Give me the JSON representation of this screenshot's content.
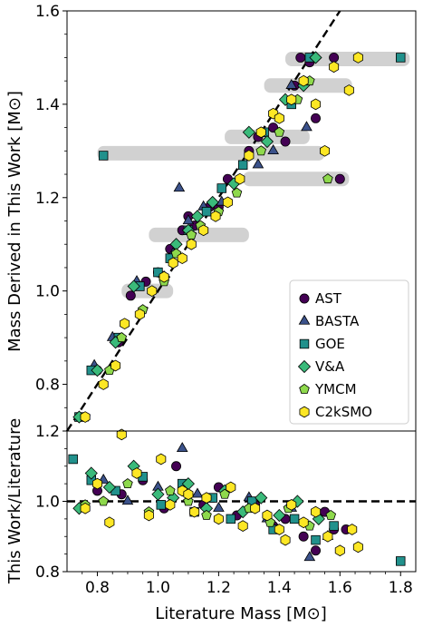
{
  "chart_data": [
    {
      "type": "scatter",
      "panel": "top",
      "xlabel": "",
      "ylabel": "Mass Derived in This Work [M⊙]",
      "ylim": [
        0.7,
        1.6
      ],
      "xlim": [
        0.7,
        1.85
      ],
      "y_ticks": [
        "0.8",
        "1.0",
        "1.2",
        "1.4",
        "1.6"
      ],
      "grid": false,
      "legend_position": "lower-right",
      "reference_line": {
        "style": "dashed",
        "color": "#000000",
        "relation": "y = x"
      },
      "uncertainty_bands": [
        {
          "y": 1.497,
          "x_low": 1.42,
          "x_high": 1.83
        },
        {
          "y": 1.295,
          "x_low": 0.8,
          "x_high": 1.55
        },
        {
          "y": 1.24,
          "x_low": 1.28,
          "x_high": 1.63
        },
        {
          "y": 1.33,
          "x_low": 1.22,
          "x_high": 1.5
        },
        {
          "y": 1.44,
          "x_low": 1.35,
          "x_high": 1.64
        },
        {
          "y": 1.12,
          "x_low": 0.97,
          "x_high": 1.3
        },
        {
          "y": 1.0,
          "x_low": 0.88,
          "x_high": 1.05
        }
      ],
      "series": [
        {
          "name": "AST",
          "marker": "circle",
          "color": "#440154",
          "x": [
            0.8,
            0.87,
            0.91,
            0.96,
            1.0,
            1.04,
            1.08,
            1.1,
            1.12,
            1.17,
            1.2,
            1.23,
            1.3,
            1.33,
            1.38,
            1.42,
            1.45,
            1.47,
            1.5,
            1.52,
            1.58,
            1.6
          ],
          "y": [
            0.83,
            0.89,
            0.99,
            1.02,
            1.04,
            1.09,
            1.13,
            1.16,
            1.14,
            1.18,
            1.18,
            1.24,
            1.3,
            1.33,
            1.35,
            1.32,
            1.44,
            1.5,
            1.49,
            1.37,
            1.5,
            1.24
          ]
        },
        {
          "name": "BASTA",
          "marker": "triangle",
          "color": "#3b528b",
          "x": [
            0.79,
            0.85,
            0.93,
            1.05,
            1.07,
            1.1,
            1.15,
            1.21,
            1.33,
            1.38,
            1.44,
            1.49
          ],
          "y": [
            0.84,
            0.9,
            1.02,
            1.08,
            1.22,
            1.15,
            1.18,
            1.19,
            1.27,
            1.3,
            1.44,
            1.35
          ]
        },
        {
          "name": "GOE",
          "marker": "square",
          "color": "#21918c",
          "x": [
            0.74,
            0.78,
            0.87,
            0.94,
            1.0,
            1.04,
            1.1,
            1.16,
            1.21,
            1.28,
            1.35,
            1.44,
            1.5,
            1.8,
            0.82
          ],
          "y": [
            0.73,
            0.83,
            0.9,
            1.01,
            1.04,
            1.07,
            1.13,
            1.17,
            1.22,
            1.27,
            1.34,
            1.4,
            1.5,
            1.5,
            1.29
          ]
        },
        {
          "name": "V&A",
          "marker": "diamond",
          "color": "#3aba7a",
          "x": [
            0.74,
            0.8,
            0.86,
            0.92,
            1.02,
            1.06,
            1.1,
            1.13,
            1.18,
            1.25,
            1.3,
            1.36,
            1.42,
            1.48,
            1.52
          ],
          "y": [
            0.73,
            0.83,
            0.89,
            1.01,
            1.03,
            1.1,
            1.13,
            1.16,
            1.19,
            1.23,
            1.34,
            1.32,
            1.41,
            1.44,
            1.5
          ]
        },
        {
          "name": "YMCM",
          "marker": "pentagon",
          "color": "#8ed94c",
          "x": [
            0.76,
            0.84,
            0.88,
            0.95,
            1.02,
            1.06,
            1.11,
            1.14,
            1.2,
            1.26,
            1.34,
            1.4,
            1.46,
            1.5,
            1.56
          ],
          "y": [
            0.73,
            0.83,
            0.9,
            0.96,
            1.02,
            1.08,
            1.12,
            1.14,
            1.17,
            1.21,
            1.3,
            1.34,
            1.41,
            1.45,
            1.24
          ]
        },
        {
          "name": "C2kSMO",
          "marker": "hexagon",
          "color": "#fde725",
          "x": [
            0.76,
            0.82,
            0.86,
            0.89,
            0.94,
            0.98,
            1.02,
            1.05,
            1.08,
            1.11,
            1.15,
            1.19,
            1.23,
            1.27,
            1.3,
            1.34,
            1.38,
            1.4,
            1.44,
            1.48,
            1.52,
            1.55,
            1.58,
            1.63,
            1.66
          ],
          "y": [
            0.73,
            0.8,
            0.84,
            0.93,
            0.95,
            1.0,
            1.03,
            1.06,
            1.07,
            1.1,
            1.13,
            1.16,
            1.19,
            1.24,
            1.29,
            1.34,
            1.38,
            1.37,
            1.41,
            1.45,
            1.4,
            1.3,
            1.48,
            1.43,
            1.5
          ]
        }
      ]
    },
    {
      "type": "scatter",
      "panel": "bottom",
      "xlabel": "Literature Mass [M⊙]",
      "ylabel": "This Work/Literature",
      "xlim": [
        0.7,
        1.85
      ],
      "ylim": [
        0.8,
        1.2
      ],
      "x_ticks": [
        "0.8",
        "1.0",
        "1.2",
        "1.4",
        "1.6",
        "1.8"
      ],
      "y_ticks": [
        "0.8",
        "1.0",
        "1.2"
      ],
      "grid": false,
      "reference_line": {
        "style": "dashed",
        "color": "#000000",
        "relation": "y = 1"
      },
      "series": [
        {
          "name": "AST",
          "marker": "circle",
          "color": "#440154",
          "x": [
            0.8,
            0.88,
            0.95,
            1.02,
            1.06,
            1.1,
            1.15,
            1.2,
            1.26,
            1.32,
            1.38,
            1.42,
            1.48,
            1.52,
            1.55,
            1.58,
            1.62
          ],
          "y": [
            1.03,
            1.02,
            1.06,
            0.98,
            1.1,
            1.02,
            0.99,
            1.04,
            0.96,
            0.99,
            0.93,
            0.95,
            0.9,
            0.86,
            0.97,
            0.92,
            0.92
          ]
        },
        {
          "name": "BASTA",
          "marker": "triangle",
          "color": "#3b528b",
          "x": [
            0.82,
            0.9,
            1.0,
            1.08,
            1.13,
            1.2,
            1.3,
            1.36,
            1.44,
            1.5,
            1.56
          ],
          "y": [
            1.06,
            1.0,
            1.04,
            1.15,
            1.02,
            0.98,
            1.01,
            0.95,
            0.98,
            0.84,
            0.9
          ]
        },
        {
          "name": "GOE",
          "marker": "square",
          "color": "#21918c",
          "x": [
            0.72,
            0.78,
            0.86,
            0.95,
            1.01,
            1.08,
            1.12,
            1.18,
            1.24,
            1.31,
            1.38,
            1.45,
            1.52,
            1.58,
            1.8
          ],
          "y": [
            1.12,
            1.06,
            1.03,
            1.07,
            0.99,
            1.05,
            0.97,
            1.01,
            0.95,
            1.0,
            0.92,
            0.95,
            0.89,
            0.93,
            0.83
          ]
        },
        {
          "name": "V&A",
          "marker": "diamond",
          "color": "#3aba7a",
          "x": [
            0.74,
            0.78,
            0.84,
            0.92,
            1.0,
            1.05,
            1.1,
            1.16,
            1.22,
            1.28,
            1.34,
            1.4,
            1.46,
            1.53
          ],
          "y": [
            0.98,
            1.08,
            1.04,
            1.1,
            1.02,
            1.01,
            1.05,
            0.98,
            1.03,
            0.97,
            1.01,
            0.96,
            1.0,
            0.95
          ]
        },
        {
          "name": "YMCM",
          "marker": "pentagon",
          "color": "#8ed94c",
          "x": [
            0.76,
            0.82,
            0.9,
            0.97,
            1.04,
            1.1,
            1.16,
            1.22,
            1.3,
            1.37,
            1.43,
            1.5,
            1.57
          ],
          "y": [
            0.99,
            1.0,
            1.05,
            0.97,
            1.03,
            1.0,
            0.96,
            1.02,
            0.98,
            0.94,
            0.98,
            0.93,
            0.96
          ]
        },
        {
          "name": "C2kSMO",
          "marker": "hexagon",
          "color": "#fde725",
          "x": [
            0.76,
            0.8,
            0.84,
            0.88,
            0.93,
            0.97,
            1.01,
            1.04,
            1.08,
            1.12,
            1.16,
            1.2,
            1.24,
            1.28,
            1.32,
            1.36,
            1.4,
            1.44,
            1.48,
            1.52,
            1.56,
            1.6,
            1.64,
            1.66,
            1.42,
            1.1
          ],
          "y": [
            0.98,
            1.05,
            0.94,
            1.19,
            1.08,
            0.96,
            1.12,
            0.99,
            1.03,
            0.97,
            1.01,
            0.95,
            1.04,
            0.93,
            0.98,
            0.96,
            0.92,
            0.99,
            0.94,
            0.97,
            0.9,
            0.86,
            0.92,
            0.87,
            0.89,
            1.02
          ]
        }
      ]
    }
  ],
  "legend": {
    "entries": [
      {
        "label": "AST",
        "marker": "circle",
        "color": "#440154"
      },
      {
        "label": "BASTA",
        "marker": "triangle",
        "color": "#3b528b"
      },
      {
        "label": "GOE",
        "marker": "square",
        "color": "#21918c"
      },
      {
        "label": "V&A",
        "marker": "diamond",
        "color": "#3aba7a"
      },
      {
        "label": "YMCM",
        "marker": "pentagon",
        "color": "#8ed94c"
      },
      {
        "label": "C2kSMO",
        "marker": "hexagon",
        "color": "#fde725"
      }
    ]
  }
}
